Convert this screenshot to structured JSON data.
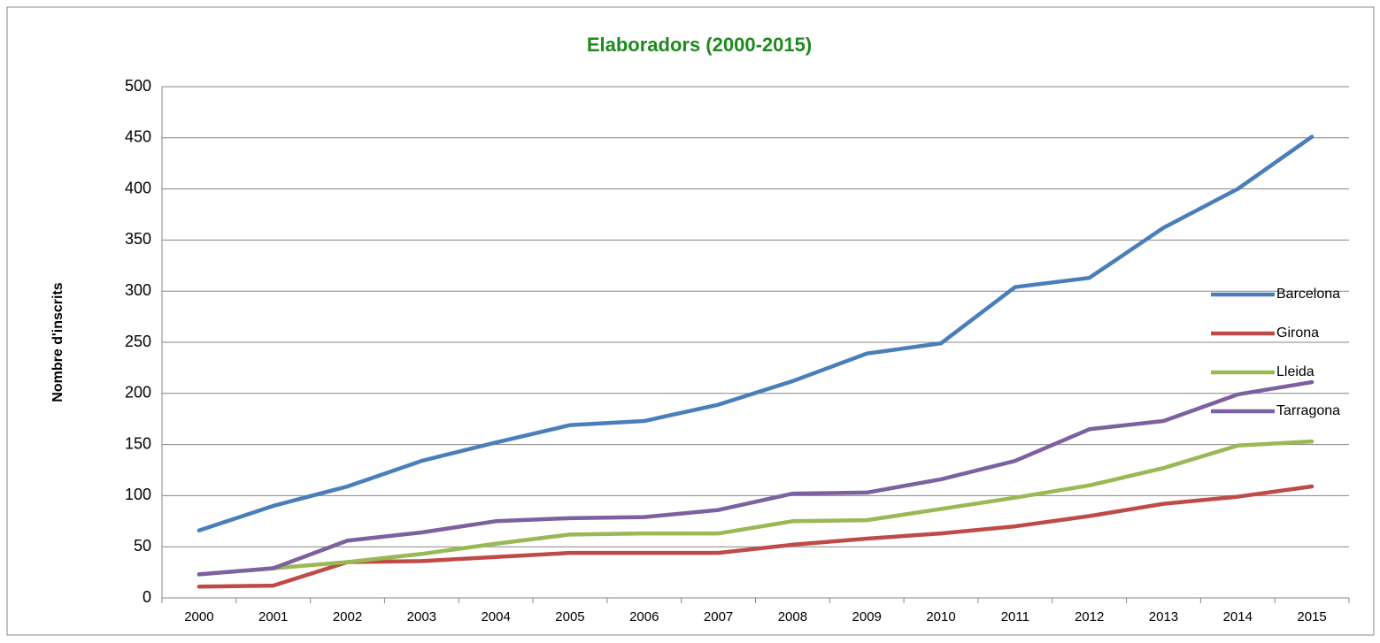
{
  "chart_data": {
    "type": "line",
    "title": "Elaboradors (2000-2015)",
    "y_label": "Nombre d'inscrits",
    "categories": [
      "2000",
      "2001",
      "2002",
      "2003",
      "2004",
      "2005",
      "2006",
      "2007",
      "2008",
      "2009",
      "2010",
      "2011",
      "2012",
      "2013",
      "2014",
      "2015"
    ],
    "series": [
      {
        "name": "Barcelona",
        "color": "#4a7ebb",
        "values": [
          66,
          90,
          109,
          134,
          152,
          169,
          173,
          189,
          212,
          239,
          249,
          304,
          313,
          362,
          400,
          451
        ]
      },
      {
        "name": "Girona",
        "color": "#be4b48",
        "values": [
          11,
          12,
          35,
          36,
          40,
          44,
          44,
          44,
          52,
          58,
          63,
          70,
          80,
          92,
          99,
          109
        ]
      },
      {
        "name": "Lleida",
        "color": "#98b954",
        "values": [
          23,
          29,
          35,
          43,
          53,
          62,
          63,
          63,
          75,
          76,
          87,
          98,
          110,
          127,
          149,
          153
        ]
      },
      {
        "name": "Tarragona",
        "color": "#7d60a0",
        "values": [
          23,
          29,
          56,
          64,
          75,
          78,
          79,
          86,
          102,
          103,
          116,
          134,
          165,
          173,
          199,
          211
        ]
      }
    ],
    "ylim": [
      0,
      500
    ],
    "yticks": [
      0,
      50,
      100,
      150,
      200,
      250,
      300,
      350,
      400,
      450,
      500
    ],
    "grid": true,
    "legend": "right"
  }
}
